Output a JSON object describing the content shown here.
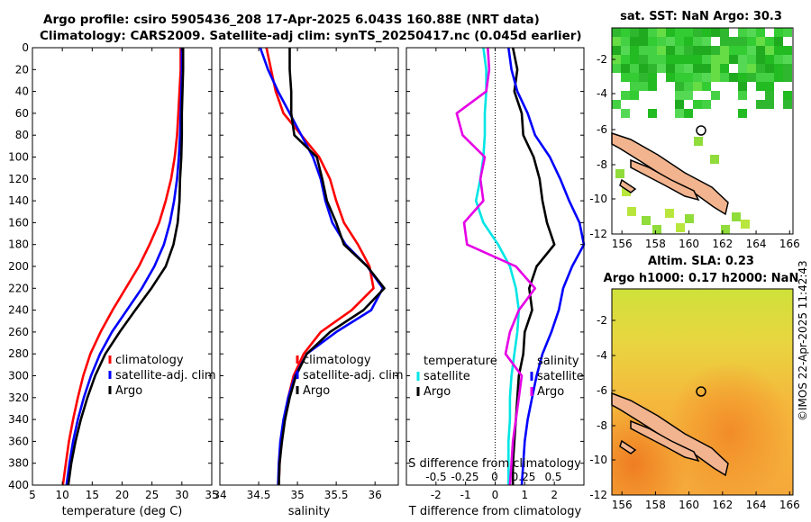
{
  "title": {
    "line1": "Argo profile: csiro 5905436_208 17-Apr-2025 6.043S 160.88E (NRT data)",
    "line2": "Climatology: CARS2009. Satellite-adj clim: synTS_20250417.nc (0.045d earlier)"
  },
  "map_sst": {
    "title": "sat. SST: NaN Argo: 30.3",
    "xticks": [
      "156",
      "158",
      "160",
      "162",
      "164",
      "166"
    ],
    "yticks": [
      "-2",
      "-4",
      "-6",
      "-8",
      "-10",
      "-12"
    ]
  },
  "map_sla": {
    "title1": "Altim. SLA: 0.23",
    "title2": "Argo h1000: 0.17 h2000: NaN",
    "xticks": [
      "156",
      "158",
      "160",
      "162",
      "164",
      "166"
    ],
    "yticks": [
      "-2",
      "-4",
      "-6",
      "-8",
      "-10",
      "-12"
    ]
  },
  "stamp": "©IMOS 22-Apr-2025 11:42:43",
  "colors": {
    "climatology": "#ff0000",
    "satellite": "#0000ff",
    "argo": "#000000",
    "t_diff": "#00e5e5",
    "s_diff": "#e600e6",
    "land": "#f2b48e"
  },
  "chart_data": [
    {
      "type": "line",
      "name": "temperature-profile",
      "xlabel": "temperature (deg C)",
      "ylabel": "",
      "xlim": [
        5,
        35
      ],
      "ylim": [
        400,
        0
      ],
      "xticks": [
        5,
        10,
        15,
        20,
        25,
        30,
        35
      ],
      "yticks": [
        0,
        20,
        40,
        60,
        80,
        100,
        120,
        140,
        160,
        180,
        200,
        220,
        240,
        260,
        280,
        300,
        320,
        340,
        360,
        380,
        400
      ],
      "legend": [
        "climatology",
        "satellite-adj. clim",
        "Argo"
      ],
      "series": [
        {
          "name": "climatology",
          "color": "#ff0000",
          "x": [
            29.8,
            29.8,
            29.6,
            29.4,
            29.2,
            28.8,
            28.2,
            27.3,
            26.2,
            24.6,
            22.8,
            20.6,
            18.4,
            16.4,
            14.7,
            13.5,
            12.6,
            11.8,
            11.1,
            10.6,
            10.1
          ],
          "y": [
            0,
            20,
            40,
            60,
            80,
            100,
            120,
            140,
            160,
            180,
            200,
            220,
            240,
            260,
            280,
            300,
            320,
            340,
            360,
            380,
            400
          ]
        },
        {
          "name": "satellite-adj. clim",
          "color": "#0000ff",
          "x": [
            30.0,
            30.0,
            29.9,
            29.8,
            29.7,
            29.5,
            29.2,
            28.7,
            28.0,
            27.0,
            25.4,
            23.3,
            20.8,
            18.3,
            16.3,
            14.8,
            13.6,
            12.6,
            11.8,
            11.2,
            10.7
          ],
          "y": [
            0,
            20,
            40,
            60,
            80,
            100,
            120,
            140,
            160,
            180,
            200,
            220,
            240,
            260,
            280,
            300,
            320,
            340,
            360,
            380,
            400
          ]
        },
        {
          "name": "Argo",
          "color": "#000000",
          "x": [
            30.2,
            30.2,
            30.1,
            30.0,
            30.0,
            29.9,
            29.7,
            29.6,
            29.3,
            28.6,
            27.3,
            24.9,
            22.2,
            19.6,
            17.2,
            15.5,
            14.2,
            13.1,
            12.2,
            11.5,
            11.0
          ],
          "y": [
            0,
            20,
            40,
            60,
            80,
            100,
            120,
            140,
            160,
            180,
            200,
            220,
            240,
            260,
            280,
            300,
            320,
            340,
            360,
            380,
            400
          ]
        }
      ]
    },
    {
      "type": "line",
      "name": "salinity-profile",
      "xlabel": "salinity",
      "xlim": [
        34,
        36.3
      ],
      "ylim": [
        400,
        0
      ],
      "xticks": [
        34,
        34.5,
        35,
        35.5,
        36
      ],
      "legend": [
        "climatology",
        "satellite-adj. clim",
        "Argo"
      ],
      "series": [
        {
          "name": "climatology",
          "color": "#ff0000",
          "x": [
            34.6,
            34.66,
            34.72,
            34.82,
            35.05,
            35.28,
            35.42,
            35.5,
            35.6,
            35.78,
            35.93,
            35.98,
            35.7,
            35.3,
            35.08,
            34.95,
            34.88,
            34.83,
            34.79,
            34.77,
            34.76
          ],
          "y": [
            0,
            20,
            40,
            60,
            80,
            100,
            120,
            140,
            160,
            180,
            200,
            220,
            240,
            260,
            280,
            300,
            320,
            340,
            360,
            380,
            400
          ]
        },
        {
          "name": "satellite-adj. clim",
          "color": "#0000ff",
          "x": [
            34.52,
            34.62,
            34.75,
            34.9,
            35.05,
            35.2,
            35.3,
            35.36,
            35.45,
            35.62,
            35.9,
            36.1,
            35.95,
            35.5,
            35.12,
            34.97,
            34.88,
            34.82,
            34.78,
            34.76,
            34.75
          ],
          "y": [
            0,
            20,
            40,
            60,
            80,
            100,
            120,
            140,
            160,
            180,
            200,
            220,
            240,
            260,
            280,
            300,
            320,
            340,
            360,
            380,
            400
          ]
        },
        {
          "name": "Argo",
          "color": "#000000",
          "x": [
            34.9,
            34.9,
            34.92,
            34.92,
            34.96,
            35.25,
            35.32,
            35.38,
            35.5,
            35.6,
            35.9,
            36.12,
            35.85,
            35.42,
            35.12,
            34.98,
            34.9,
            34.84,
            34.8,
            34.77,
            34.76
          ],
          "y": [
            0,
            20,
            40,
            60,
            80,
            100,
            120,
            140,
            160,
            180,
            200,
            220,
            240,
            260,
            280,
            300,
            320,
            340,
            360,
            380,
            400
          ]
        }
      ]
    },
    {
      "type": "line",
      "name": "difference-profile",
      "xlabel": "T difference from climatology",
      "xlim": [
        -3,
        3
      ],
      "ylim": [
        400,
        0
      ],
      "xticks": [
        -2,
        -1,
        0,
        1,
        2
      ],
      "top_axis_label": "S difference from climatology",
      "top_ticks": [
        "-0.5",
        "-0.25",
        "0",
        "0.25",
        "0.5"
      ],
      "legend_titles": [
        "temperature",
        "salinity"
      ],
      "legend": [
        "satellite",
        "Argo"
      ],
      "series": [
        {
          "name": "temperature satellite",
          "color": "#00e5e5",
          "x": [
            -0.4,
            -0.3,
            -0.3,
            -0.35,
            -0.35,
            -0.4,
            -0.5,
            -0.65,
            -0.4,
            0.1,
            0.5,
            0.7,
            0.8,
            0.75,
            0.65,
            0.55,
            0.5,
            0.5,
            0.45,
            0.45,
            0.45
          ],
          "y": [
            0,
            20,
            40,
            60,
            80,
            100,
            120,
            140,
            160,
            180,
            200,
            220,
            240,
            260,
            280,
            300,
            320,
            340,
            360,
            380,
            400
          ]
        },
        {
          "name": "temperature Argo",
          "color": "#000000",
          "x": [
            0.6,
            0.75,
            0.65,
            0.9,
            0.95,
            1.3,
            1.5,
            1.6,
            1.75,
            2.0,
            1.4,
            1.15,
            1.25,
            1.0,
            0.95,
            0.8,
            0.75,
            0.7,
            0.65,
            0.6,
            0.6
          ],
          "y": [
            0,
            20,
            40,
            60,
            80,
            100,
            120,
            140,
            160,
            180,
            200,
            220,
            240,
            260,
            280,
            300,
            320,
            340,
            360,
            380,
            400
          ]
        },
        {
          "name": "salinity satellite",
          "color": "#e600e6",
          "x": [
            -0.25,
            -0.2,
            -0.3,
            -1.3,
            -1.1,
            -0.35,
            -0.5,
            -0.4,
            -1.05,
            -0.95,
            0.7,
            1.35,
            0.8,
            0.5,
            0.35,
            0.9,
            0.8,
            0.7,
            0.6,
            0.55,
            0.5
          ],
          "y": [
            0,
            20,
            40,
            60,
            80,
            100,
            120,
            140,
            160,
            180,
            200,
            220,
            240,
            260,
            280,
            300,
            320,
            340,
            360,
            380,
            400
          ]
        },
        {
          "name": "salinity Argo",
          "color": "#0000ff",
          "x": [
            0.45,
            0.55,
            0.75,
            1.1,
            1.35,
            1.85,
            2.2,
            2.5,
            2.85,
            3.0,
            2.6,
            2.3,
            2.15,
            1.9,
            1.6,
            1.4,
            1.25,
            1.1,
            1.0,
            0.95,
            0.9
          ],
          "y": [
            0,
            20,
            40,
            60,
            80,
            100,
            120,
            140,
            160,
            180,
            200,
            220,
            240,
            260,
            280,
            300,
            320,
            340,
            360,
            380,
            400
          ]
        }
      ]
    }
  ]
}
